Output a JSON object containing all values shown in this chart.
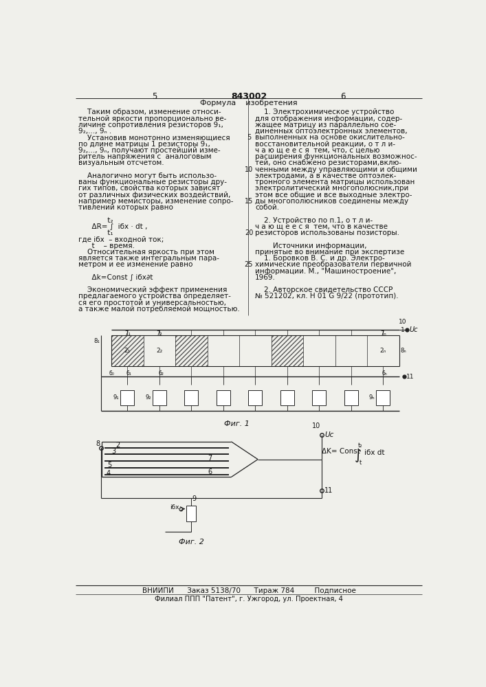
{
  "page_bg": "#f0f0eb",
  "title_number": "843002",
  "col_left_header": "5",
  "col_right_header": "6",
  "col_right_title": "Формула    изобретения",
  "left_text": [
    "    Таким образом, изменение относи-",
    "тельной яркости пропорционально ве-",
    "личине сопротивления резисторов 9₁,",
    "9₂,..., 9ₙ .",
    "    Установив монотонно изменяющиеся",
    "по длине матрицы 1 резисторы 9₁,",
    "9₂,..., 9ₙ, получают простейший изме-",
    "ритель напряжения с  аналоговым",
    "визуальным отсчетом.",
    "",
    "    Аналогично могут быть использо-",
    "ваны функциональные резисторы дру-",
    "гих типов, свойства которых зависят",
    "от различных физических воздействий,",
    "например мемисторы, изменение сопро-",
    "тивлений которых равно",
    "",
    "             t₂",
    "      ΔR= ∫  iбх · dt ,",
    "             t₁",
    "где iбх  – входной ток;",
    "      t    – время.",
    "    Относительная яркость при этом",
    "является также интегральным пара-",
    "метром и ее изменение равно",
    "",
    "      Δk=Const ∫ iбх∂t",
    "",
    "    Экономический эффект применения",
    "предлагаемого устройства определяет-",
    "ся его простотой и универсальностью,",
    "а также малой потребляемой мощностью."
  ],
  "right_text": [
    "    1. Электрохимическое устройство",
    "для отображения информации, содер-",
    "жащее матрицу из параллельно сое-",
    "диненных оптоэлектронных элементов,",
    "выполненных на основе окислительно-",
    "восстановительной реакции, о т л и-",
    "ч а ю щ е е с я  тем, что, с целью",
    "расширения функциональных возможнос-",
    "тей, оно снабжено резисторами,вклю-",
    "ченными между управляющими и общими",
    "электродами, а в качестве оптоэлек-",
    "тронного элемента матрицы использован",
    "электролитический многополюсник,при",
    "этом все общие и все выходные электро-",
    "ды многополюсников соединены между",
    "собой.",
    "",
    "    2. Устройство по п.1, о т л и-",
    "ч а ю щ е е с я  тем, что в качестве",
    "резисторов использованы позисторы.",
    "",
    "        Источники информации,",
    "принятые во внимание при экспертизе",
    "    1. Боровков В. С. и др. Электро-",
    "химические преобразователи первичной",
    "информации. М., \"Машиностроение\",",
    "1969.",
    "",
    "    2. Авторское свидетельство СССР",
    "№ 521202, кл. H 01 G 9/22 (прототип)."
  ],
  "line_numbers": [
    "5",
    "10",
    "15",
    "20",
    "25"
  ],
  "fig1_label": "Фиг. 1",
  "fig2_label": "Фиг. 2",
  "footer_line1": "ВНИИПИ      Заказ 5138/70      Тираж 784         Подписное",
  "footer_line2": "Филиал ППП \"Патент\", г. Ужгород, ул. Проектная, 4",
  "text_color": "#111111",
  "line_color": "#222222"
}
